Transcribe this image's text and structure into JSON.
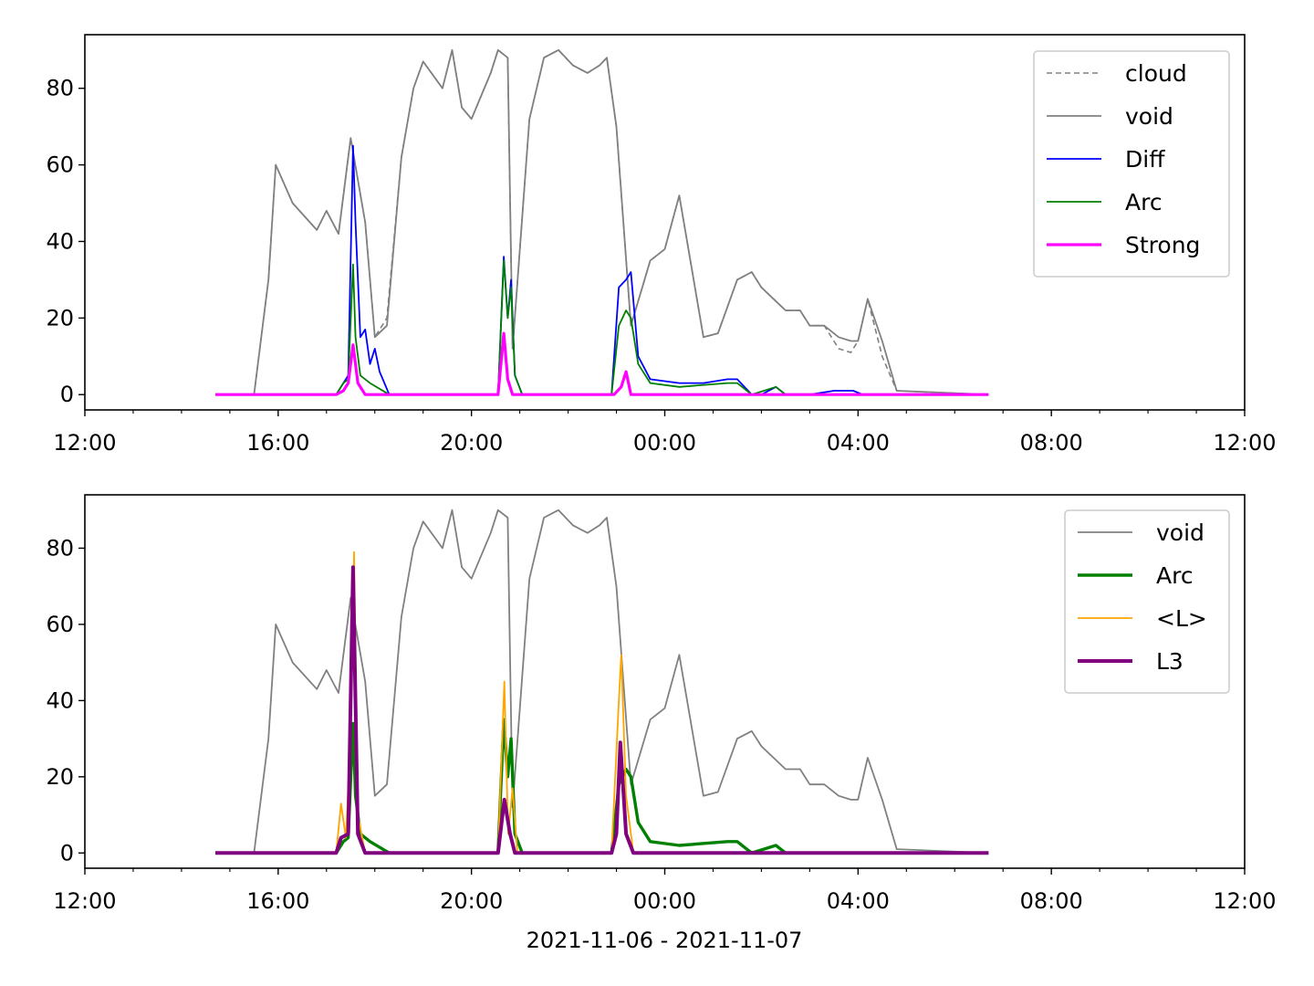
{
  "xlabel": "2021-11-06 - 2021-11-07",
  "chart_data": [
    {
      "type": "line",
      "x_unit": "time (2021-11-06 12:00 to 2021-11-07 12:00)",
      "xlim": [
        "12:00",
        "12:00"
      ],
      "ylim": [
        -4,
        94
      ],
      "x_ticks": [
        "12:00",
        "16:00",
        "20:00",
        "00:00",
        "04:00",
        "08:00",
        "12:00"
      ],
      "y_ticks": [
        "0",
        "20",
        "40",
        "60",
        "80"
      ],
      "legend_position": "upper-right",
      "legend": [
        "cloud",
        "void",
        "Diff",
        "Arc",
        "Strong"
      ],
      "series": [
        {
          "name": "cloud",
          "color": "#808080",
          "style": "dashed",
          "x": [
            14.7,
            15.5,
            15.8,
            15.95,
            16.3,
            16.8,
            17.0,
            17.25,
            17.5,
            17.8,
            18.0,
            18.25,
            18.55,
            18.8,
            19.0,
            19.4,
            19.6,
            19.8,
            20.0,
            20.4,
            20.55,
            20.75,
            20.85,
            21.2,
            21.5,
            21.8,
            22.1,
            22.4,
            22.65,
            22.8,
            23.0,
            23.3,
            23.7,
            24.0,
            24.3,
            24.8,
            25.1,
            25.5,
            25.8,
            26.0,
            26.5,
            26.8,
            27.0,
            27.3,
            27.6,
            27.85,
            28.0,
            28.2,
            28.5,
            28.8,
            30.7
          ],
          "y": [
            0,
            0,
            30,
            60,
            50,
            43,
            48,
            42,
            67,
            45,
            15,
            20,
            62,
            80,
            87,
            80,
            90,
            75,
            72,
            84,
            90,
            88,
            12,
            72,
            88,
            90,
            86,
            84,
            86,
            88,
            70,
            18,
            35,
            38,
            52,
            15,
            16,
            30,
            32,
            28,
            22,
            22,
            18,
            18,
            12,
            11,
            14,
            25,
            10,
            1,
            0
          ]
        },
        {
          "name": "void",
          "color": "#808080",
          "style": "solid",
          "x": [
            14.7,
            15.5,
            15.8,
            15.95,
            16.3,
            16.8,
            17.0,
            17.25,
            17.5,
            17.8,
            18.0,
            18.25,
            18.55,
            18.8,
            19.0,
            19.4,
            19.6,
            19.8,
            20.0,
            20.4,
            20.55,
            20.75,
            20.85,
            21.2,
            21.5,
            21.8,
            22.1,
            22.4,
            22.65,
            22.8,
            23.0,
            23.3,
            23.7,
            24.0,
            24.3,
            24.8,
            25.1,
            25.5,
            25.8,
            26.0,
            26.5,
            26.8,
            27.0,
            27.3,
            27.6,
            27.85,
            28.0,
            28.2,
            28.5,
            28.8,
            30.7
          ],
          "y": [
            0,
            0,
            30,
            60,
            50,
            43,
            48,
            42,
            67,
            45,
            15,
            18,
            62,
            80,
            87,
            80,
            90,
            75,
            72,
            84,
            90,
            88,
            12,
            72,
            88,
            90,
            86,
            84,
            86,
            88,
            70,
            18,
            35,
            38,
            52,
            15,
            16,
            30,
            32,
            28,
            22,
            22,
            18,
            18,
            15,
            14,
            14,
            25,
            14,
            1,
            0
          ]
        },
        {
          "name": "Diff",
          "color": "#0000ff",
          "style": "solid",
          "x": [
            14.7,
            17.2,
            17.35,
            17.45,
            17.55,
            17.6,
            17.7,
            17.8,
            17.9,
            18.0,
            18.1,
            18.3,
            20.55,
            20.67,
            20.75,
            20.82,
            20.9,
            21.05,
            22.9,
            23.05,
            23.2,
            23.3,
            23.45,
            23.7,
            24.3,
            24.8,
            25.3,
            25.5,
            25.8,
            26.0,
            26.3,
            26.5,
            27.0,
            27.5,
            27.9,
            28.1,
            30.7
          ],
          "y": [
            0,
            0,
            3,
            5,
            65,
            45,
            15,
            17,
            8,
            12,
            6,
            0,
            0,
            36,
            20,
            30,
            5,
            0,
            0,
            28,
            30,
            32,
            10,
            4,
            3,
            3,
            4,
            4,
            0,
            0,
            2,
            0,
            0,
            1,
            1,
            0,
            0
          ]
        },
        {
          "name": "Arc",
          "color": "#008000",
          "style": "solid",
          "x": [
            14.7,
            17.2,
            17.35,
            17.45,
            17.55,
            17.6,
            17.7,
            17.9,
            18.3,
            20.55,
            20.67,
            20.75,
            20.82,
            20.9,
            21.05,
            22.9,
            23.05,
            23.2,
            23.3,
            23.45,
            23.7,
            24.3,
            25.3,
            25.5,
            25.8,
            26.3,
            26.5,
            30.7
          ],
          "y": [
            0,
            0,
            3,
            4,
            34,
            15,
            5,
            3,
            0,
            0,
            35,
            20,
            28,
            5,
            0,
            0,
            18,
            22,
            20,
            8,
            3,
            2,
            3,
            3,
            0,
            2,
            0,
            0
          ]
        },
        {
          "name": "Strong",
          "color": "#ff00ff",
          "style": "solid",
          "x": [
            14.7,
            17.2,
            17.35,
            17.45,
            17.55,
            17.65,
            17.8,
            20.55,
            20.67,
            20.75,
            20.85,
            22.95,
            23.1,
            23.2,
            23.3,
            30.7
          ],
          "y": [
            0,
            0,
            1,
            3,
            13,
            3,
            0,
            0,
            16,
            4,
            0,
            0,
            2,
            6,
            0,
            0
          ]
        }
      ]
    },
    {
      "type": "line",
      "x_unit": "time (2021-11-06 12:00 to 2021-11-07 12:00)",
      "xlim": [
        "12:00",
        "12:00"
      ],
      "ylim": [
        -4,
        94
      ],
      "x_ticks": [
        "12:00",
        "16:00",
        "20:00",
        "00:00",
        "04:00",
        "08:00",
        "12:00"
      ],
      "y_ticks": [
        "0",
        "20",
        "40",
        "60",
        "80"
      ],
      "legend_position": "upper-right",
      "legend": [
        "void",
        "Arc",
        "<L>",
        "L3"
      ],
      "series": [
        {
          "name": "void",
          "color": "#808080",
          "style": "solid",
          "x": [
            14.7,
            15.5,
            15.8,
            15.95,
            16.3,
            16.8,
            17.0,
            17.25,
            17.5,
            17.8,
            18.0,
            18.25,
            18.55,
            18.8,
            19.0,
            19.4,
            19.6,
            19.8,
            20.0,
            20.4,
            20.55,
            20.75,
            20.85,
            21.2,
            21.5,
            21.8,
            22.1,
            22.4,
            22.65,
            22.8,
            23.0,
            23.3,
            23.7,
            24.0,
            24.3,
            24.8,
            25.1,
            25.5,
            25.8,
            26.0,
            26.5,
            26.8,
            27.0,
            27.3,
            27.6,
            27.85,
            28.0,
            28.2,
            28.5,
            28.8,
            30.7
          ],
          "y": [
            0,
            0,
            30,
            60,
            50,
            43,
            48,
            42,
            67,
            45,
            15,
            18,
            62,
            80,
            87,
            80,
            90,
            75,
            72,
            84,
            90,
            88,
            12,
            72,
            88,
            90,
            86,
            84,
            86,
            88,
            70,
            18,
            35,
            38,
            52,
            15,
            16,
            30,
            32,
            28,
            22,
            22,
            18,
            18,
            15,
            14,
            14,
            25,
            14,
            1,
            0
          ]
        },
        {
          "name": "Arc",
          "color": "#008000",
          "style": "solid",
          "x": [
            14.7,
            17.2,
            17.35,
            17.45,
            17.55,
            17.6,
            17.7,
            17.9,
            18.3,
            20.55,
            20.67,
            20.75,
            20.82,
            20.9,
            21.05,
            22.9,
            23.05,
            23.2,
            23.3,
            23.45,
            23.7,
            24.3,
            25.3,
            25.5,
            25.8,
            26.3,
            26.5,
            30.7
          ],
          "y": [
            0,
            0,
            3,
            4,
            34,
            15,
            5,
            3,
            0,
            0,
            35,
            20,
            30,
            5,
            0,
            0,
            18,
            22,
            20,
            8,
            3,
            2,
            3,
            3,
            0,
            2,
            0,
            0
          ]
        },
        {
          "name": "<L>",
          "color": "#ffa500",
          "style": "solid",
          "x": [
            14.7,
            17.2,
            17.3,
            17.4,
            17.5,
            17.57,
            17.65,
            17.8,
            20.55,
            20.68,
            20.76,
            20.85,
            20.95,
            22.9,
            23.05,
            23.1,
            23.2,
            23.35,
            30.7
          ],
          "y": [
            0,
            0,
            13,
            4,
            30,
            79,
            10,
            0,
            0,
            45,
            5,
            17,
            0,
            0,
            40,
            52,
            15,
            0,
            0
          ]
        },
        {
          "name": "L3",
          "color": "#800080",
          "style": "solid",
          "x": [
            14.7,
            17.2,
            17.3,
            17.45,
            17.55,
            17.65,
            17.8,
            20.55,
            20.68,
            20.8,
            20.9,
            22.9,
            23.0,
            23.08,
            23.2,
            23.35,
            30.7
          ],
          "y": [
            0,
            0,
            4,
            5,
            75,
            5,
            0,
            0,
            14,
            5,
            0,
            0,
            5,
            29,
            5,
            0,
            0
          ]
        }
      ]
    }
  ]
}
